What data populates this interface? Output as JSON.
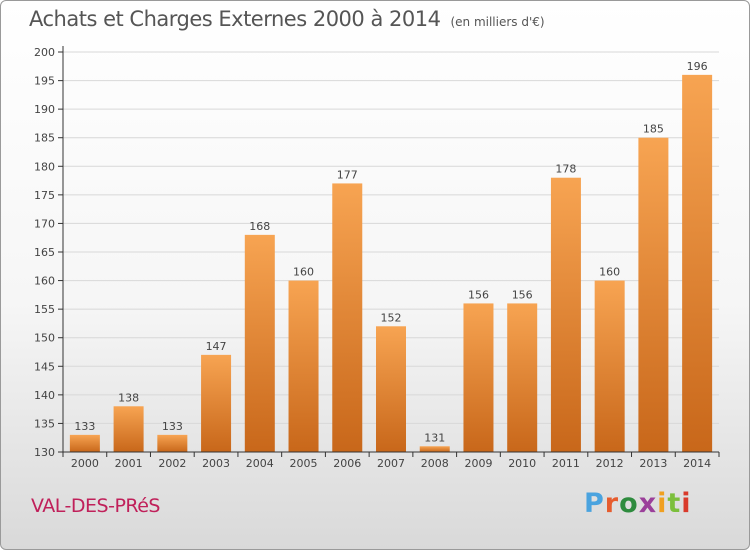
{
  "header": {
    "title": "Achats et Charges Externes 2000 à 2014",
    "unit": "(en milliers d'€)"
  },
  "footer": {
    "place": "VAL-DES-PRéS",
    "brand": "Proxiti",
    "brand_colors": [
      "#4aa3df",
      "#e65c2e",
      "#2e8b3e",
      "#9b3f9a",
      "#f0a020",
      "#7cbf3c",
      "#d93a2b"
    ]
  },
  "colors": {
    "bar_light": "#f7a452",
    "bar_dark": "#c8671a",
    "axis": "#333333",
    "grid": "#d8d8d8"
  },
  "chart_data": {
    "type": "bar",
    "categories": [
      "2000",
      "2001",
      "2002",
      "2003",
      "2004",
      "2005",
      "2006",
      "2007",
      "2008",
      "2009",
      "2010",
      "2011",
      "2012",
      "2013",
      "2014"
    ],
    "values": [
      133,
      138,
      133,
      147,
      168,
      160,
      177,
      152,
      131,
      156,
      156,
      178,
      160,
      185,
      196
    ],
    "title": "Achats et Charges Externes 2000 à 2014",
    "xlabel": "",
    "ylabel": "",
    "ylim": [
      130,
      200
    ],
    "yticks": [
      130,
      135,
      140,
      145,
      150,
      155,
      160,
      165,
      170,
      175,
      180,
      185,
      190,
      195,
      200
    ],
    "grid": true,
    "data_labels": true
  }
}
